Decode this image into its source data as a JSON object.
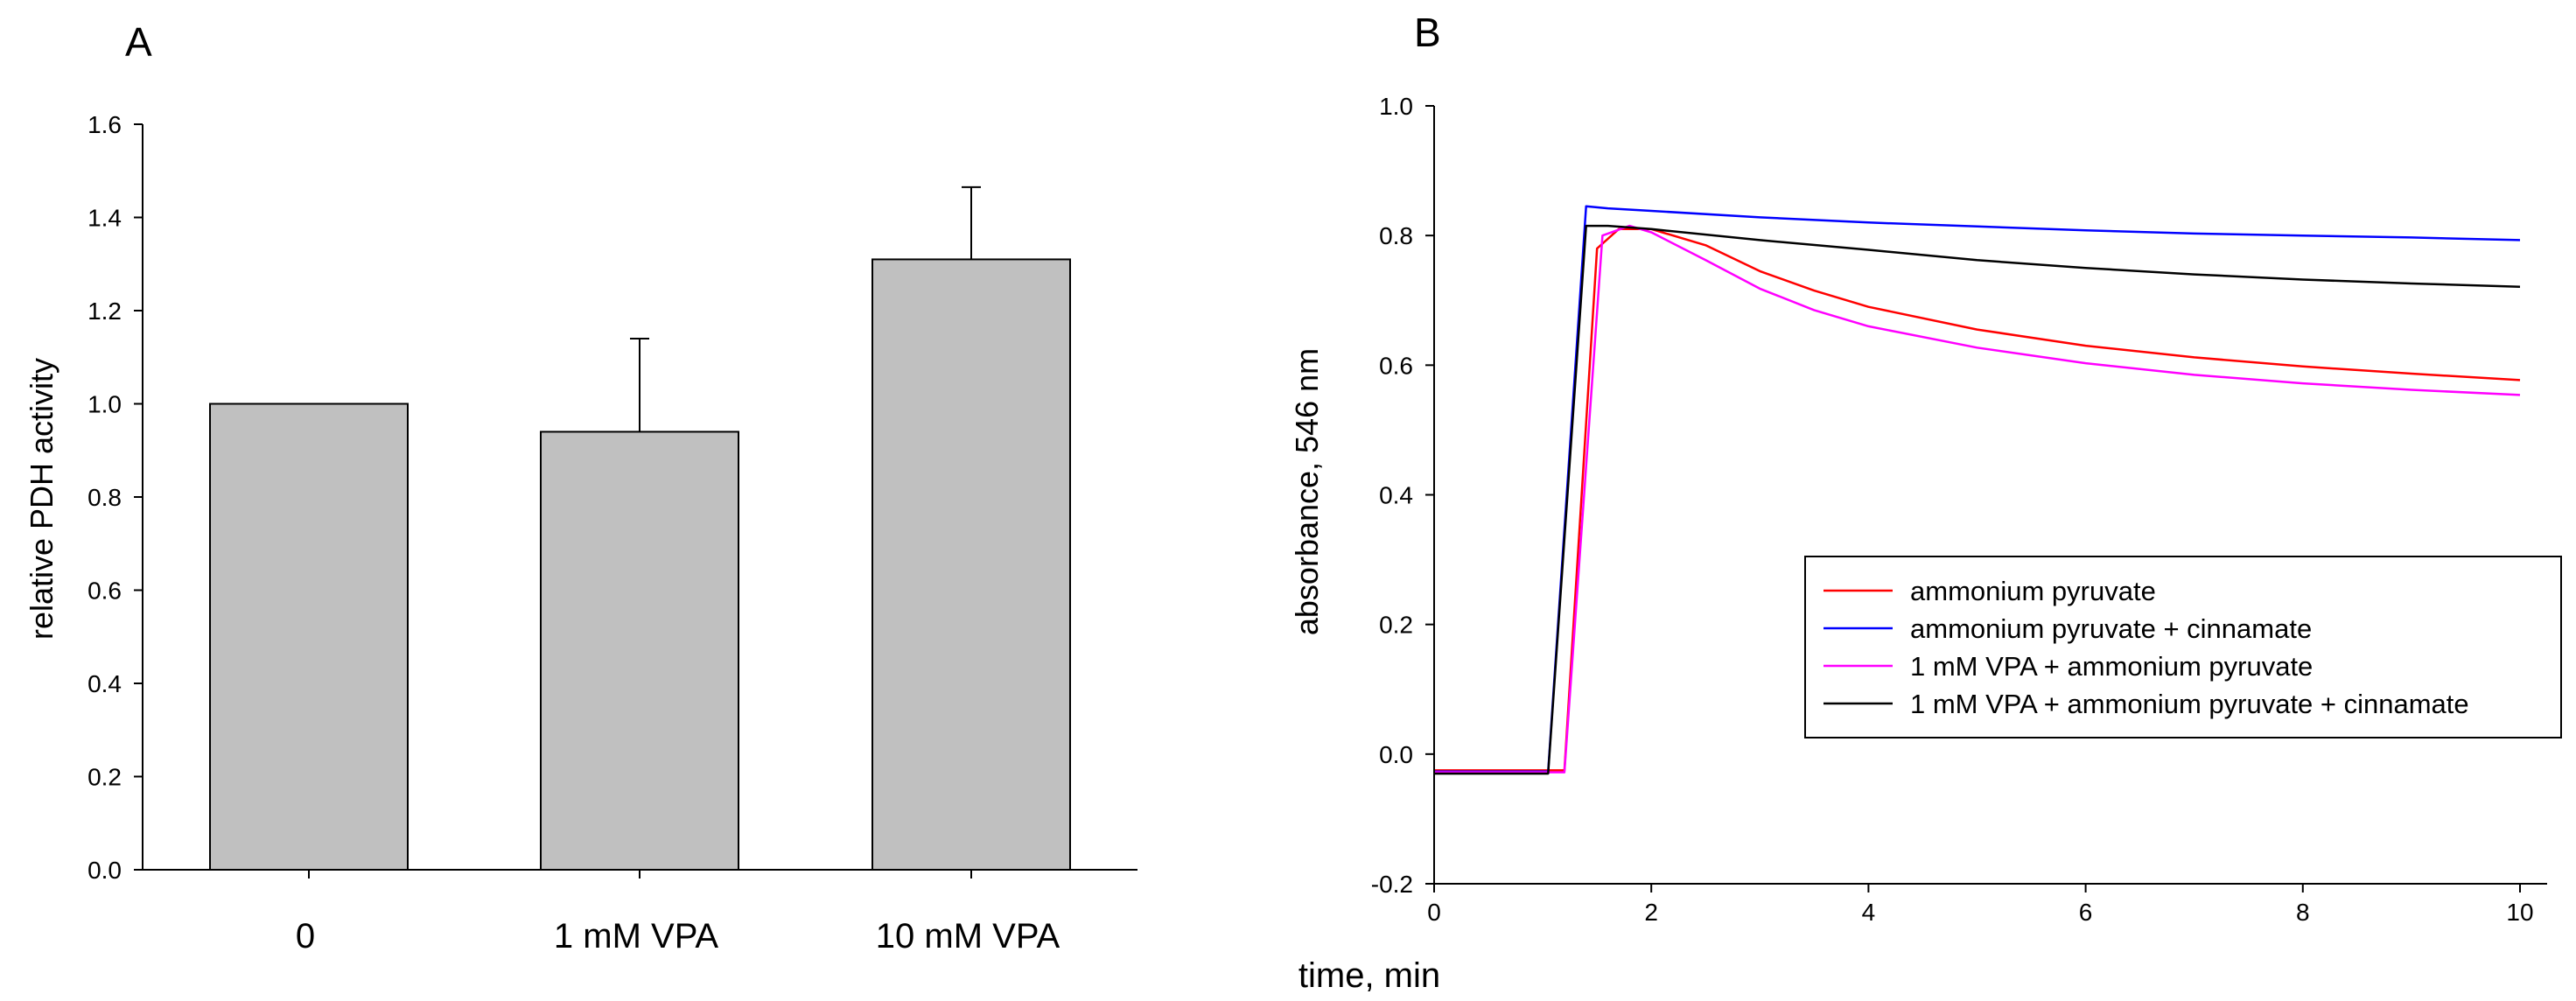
{
  "chart_data": [
    {
      "type": "bar",
      "panel_label": "A",
      "title": "",
      "xlabel": "",
      "ylabel": "relative PDH activity",
      "ylim": [
        0,
        1.6
      ],
      "yticks": [
        0,
        0.2,
        0.4,
        0.6,
        0.8,
        1.0,
        1.2,
        1.4,
        1.6
      ],
      "ytick_labels": [
        "0.0",
        "0.2",
        "0.4",
        "0.6",
        "0.8",
        "1.0",
        "1.2",
        "1.4",
        "1.6"
      ],
      "categories": [
        "0",
        "1 mM VPA",
        "10 mM VPA"
      ],
      "values": [
        1.0,
        0.94,
        1.31
      ],
      "error_upper": [
        0,
        0.2,
        0.155
      ],
      "bar_color": "#c0c0c0",
      "bar_edge_color": "#000000",
      "grid": false
    },
    {
      "type": "line",
      "panel_label": "B",
      "title": "",
      "xlabel": "time, min",
      "ylabel": "absorbance, 546 nm",
      "xlim": [
        0,
        10
      ],
      "ylim": [
        -0.2,
        1.0
      ],
      "xticks": [
        0,
        2,
        4,
        6,
        8,
        10
      ],
      "xtick_labels": [
        "0",
        "2",
        "4",
        "6",
        "8",
        "10"
      ],
      "yticks": [
        -0.2,
        0,
        0.2,
        0.4,
        0.6,
        0.8,
        1.0
      ],
      "ytick_labels": [
        "-0.2",
        "0.0",
        "0.2",
        "0.4",
        "0.6",
        "0.8",
        "1.0"
      ],
      "legend_position": "center-right",
      "grid": false,
      "series": [
        {
          "name": "ammonium pyruvate",
          "color": "#ff0000",
          "x": [
            0,
            1.2,
            1.5,
            1.7,
            2,
            2.5,
            3,
            3.5,
            4,
            5,
            6,
            7,
            8,
            9,
            10
          ],
          "y": [
            -0.025,
            -0.025,
            0.78,
            0.81,
            0.81,
            0.785,
            0.745,
            0.715,
            0.69,
            0.655,
            0.63,
            0.612,
            0.598,
            0.587,
            0.577
          ]
        },
        {
          "name": "ammonium pyruvate + cinnamate",
          "color": "#0000ff",
          "x": [
            0,
            1.05,
            1.4,
            1.6,
            2,
            3,
            4,
            5,
            6,
            7,
            8,
            9,
            10
          ],
          "y": [
            -0.027,
            -0.027,
            0.845,
            0.842,
            0.838,
            0.828,
            0.82,
            0.814,
            0.808,
            0.803,
            0.8,
            0.797,
            0.793
          ]
        },
        {
          "name": "1 mM VPA + ammonium pyruvate",
          "color": "#ff00ff",
          "x": [
            0,
            1.2,
            1.55,
            1.8,
            2,
            2.5,
            3,
            3.5,
            4,
            5,
            6,
            7,
            8,
            9,
            10
          ],
          "y": [
            -0.028,
            -0.028,
            0.8,
            0.815,
            0.805,
            0.762,
            0.718,
            0.685,
            0.66,
            0.627,
            0.603,
            0.585,
            0.572,
            0.562,
            0.554
          ]
        },
        {
          "name": "1 mM VPA + ammonium pyruvate + cinnamate",
          "color": "#000000",
          "x": [
            0,
            1.05,
            1.4,
            1.6,
            2,
            3,
            4,
            5,
            6,
            7,
            8,
            9,
            10
          ],
          "y": [
            -0.03,
            -0.03,
            0.815,
            0.815,
            0.81,
            0.793,
            0.778,
            0.762,
            0.75,
            0.74,
            0.732,
            0.726,
            0.721
          ]
        }
      ]
    }
  ]
}
